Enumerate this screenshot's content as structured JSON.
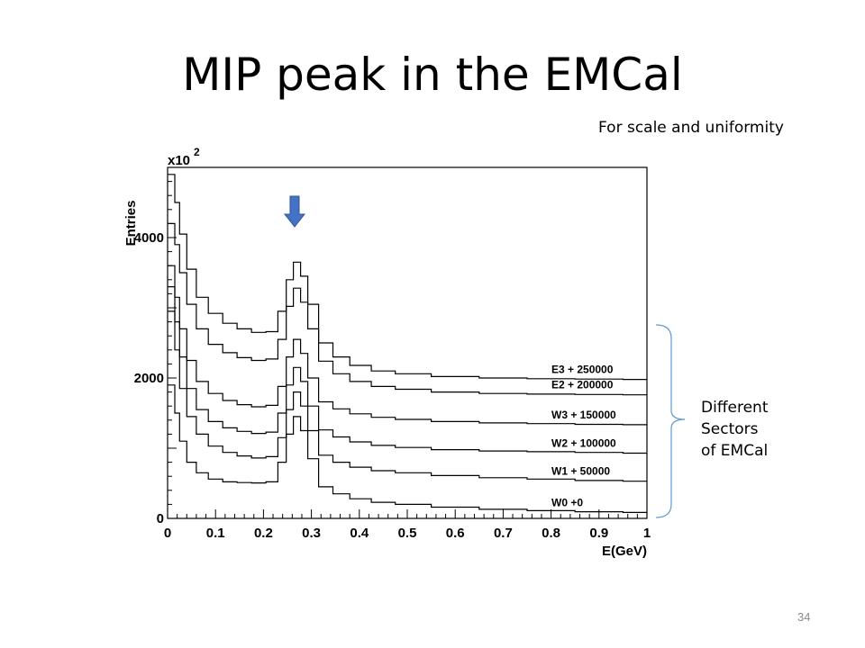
{
  "slide": {
    "title": "MIP peak in the EMCal",
    "subtitle": "For scale and uniformity",
    "side_note": [
      "Different",
      "Sectors",
      "of EMCal"
    ],
    "page_number": "34"
  },
  "chart_data": {
    "type": "line",
    "xlabel": "E(GeV)",
    "ylabel": "Entries",
    "y_multiplier": "x10",
    "y_multiplier_exp": "2",
    "xlim": [
      0,
      1
    ],
    "ylim": [
      0,
      5000
    ],
    "x_ticks": [
      0,
      0.1,
      0.2,
      0.3,
      0.4,
      0.5,
      0.6,
      0.7,
      0.8,
      0.9,
      1
    ],
    "x_tick_labels": [
      "0",
      "0.1",
      "0.2",
      "0.3",
      "0.4",
      "0.5",
      "0.6",
      "0.7",
      "0.8",
      "0.9",
      "1"
    ],
    "y_ticks": [
      0,
      2000,
      4000
    ],
    "y_tick_labels": [
      "0",
      "2000",
      "4000"
    ],
    "peak_arrow_x": 0.265,
    "peak_arrow_color": "#4472c4",
    "bracket_color": "#5b9bd5",
    "x": [
      0.01,
      0.02,
      0.03,
      0.05,
      0.07,
      0.1,
      0.13,
      0.16,
      0.19,
      0.22,
      0.24,
      0.255,
      0.27,
      0.285,
      0.3,
      0.33,
      0.36,
      0.4,
      0.45,
      0.5,
      0.6,
      0.7,
      0.8,
      0.9,
      1.0
    ],
    "series": [
      {
        "name": "W0 +0",
        "values": [
          1900,
          1500,
          1100,
          800,
          650,
          560,
          520,
          510,
          505,
          520,
          800,
          1200,
          1450,
          1250,
          850,
          450,
          350,
          280,
          230,
          200,
          160,
          130,
          110,
          95,
          85
        ]
      },
      {
        "name": "W1 + 50000",
        "values": [
          2950,
          2400,
          1850,
          1450,
          1200,
          1030,
          940,
          890,
          860,
          880,
          1150,
          1550,
          1800,
          1600,
          1250,
          900,
          800,
          730,
          680,
          650,
          610,
          580,
          560,
          540,
          530
        ]
      },
      {
        "name": "W2 + 100000",
        "values": [
          3300,
          2800,
          2300,
          1850,
          1550,
          1380,
          1290,
          1240,
          1210,
          1230,
          1500,
          1900,
          2150,
          1950,
          1600,
          1260,
          1160,
          1090,
          1040,
          1010,
          980,
          960,
          950,
          940,
          930
        ]
      },
      {
        "name": "W3 + 150000",
        "values": [
          3600,
          3150,
          2700,
          2250,
          1950,
          1780,
          1680,
          1620,
          1590,
          1610,
          1880,
          2300,
          2550,
          2350,
          2000,
          1660,
          1560,
          1490,
          1440,
          1410,
          1380,
          1360,
          1350,
          1340,
          1335
        ]
      },
      {
        "name": "E2 + 200000",
        "values": [
          4200,
          3900,
          3500,
          3050,
          2700,
          2480,
          2360,
          2290,
          2250,
          2270,
          2550,
          3020,
          3280,
          3080,
          2700,
          2240,
          2060,
          1950,
          1880,
          1840,
          1800,
          1780,
          1770,
          1765,
          1760
        ]
      },
      {
        "name": "E3 + 250000",
        "values": [
          4900,
          4500,
          4050,
          3550,
          3150,
          2920,
          2780,
          2700,
          2650,
          2660,
          2950,
          3400,
          3650,
          3450,
          3050,
          2500,
          2300,
          2180,
          2100,
          2060,
          2020,
          2000,
          1990,
          1985,
          1980
        ]
      }
    ]
  }
}
